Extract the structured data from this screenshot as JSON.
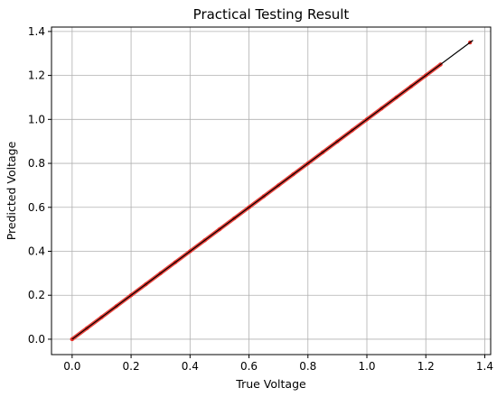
{
  "chart_data": {
    "type": "scatter",
    "title": "Practical Testing Result",
    "xlabel": "True Voltage",
    "ylabel": "Predicted Voltage",
    "xlim": [
      -0.07,
      1.42
    ],
    "ylim": [
      -0.07,
      1.42
    ],
    "xticks": [
      "0.0",
      "0.2",
      "0.4",
      "0.6",
      "0.8",
      "1.0",
      "1.2",
      "1.4"
    ],
    "yticks": [
      "0.0",
      "0.2",
      "0.4",
      "0.6",
      "0.8",
      "1.0",
      "1.2",
      "1.4"
    ],
    "grid": true,
    "series": [
      {
        "kind": "points",
        "color": "#e8312a",
        "x": [
          0.0,
          0.05,
          0.1,
          0.15,
          0.2,
          0.25,
          0.3,
          0.35,
          0.4,
          0.45,
          0.5,
          0.55,
          0.6,
          0.65,
          0.7,
          0.75,
          0.8,
          0.85,
          0.9,
          0.95,
          1.0,
          1.05,
          1.1,
          1.15,
          1.2,
          1.25,
          1.35
        ],
        "y": [
          0.0,
          0.05,
          0.1,
          0.15,
          0.2,
          0.25,
          0.3,
          0.35,
          0.4,
          0.45,
          0.5,
          0.55,
          0.6,
          0.65,
          0.7,
          0.75,
          0.8,
          0.85,
          0.9,
          0.95,
          1.0,
          1.05,
          1.1,
          1.15,
          1.2,
          1.25,
          1.35
        ]
      },
      {
        "kind": "line",
        "color": "#000000",
        "x": [
          0.0,
          1.36
        ],
        "y": [
          0.0,
          1.36
        ]
      }
    ]
  }
}
